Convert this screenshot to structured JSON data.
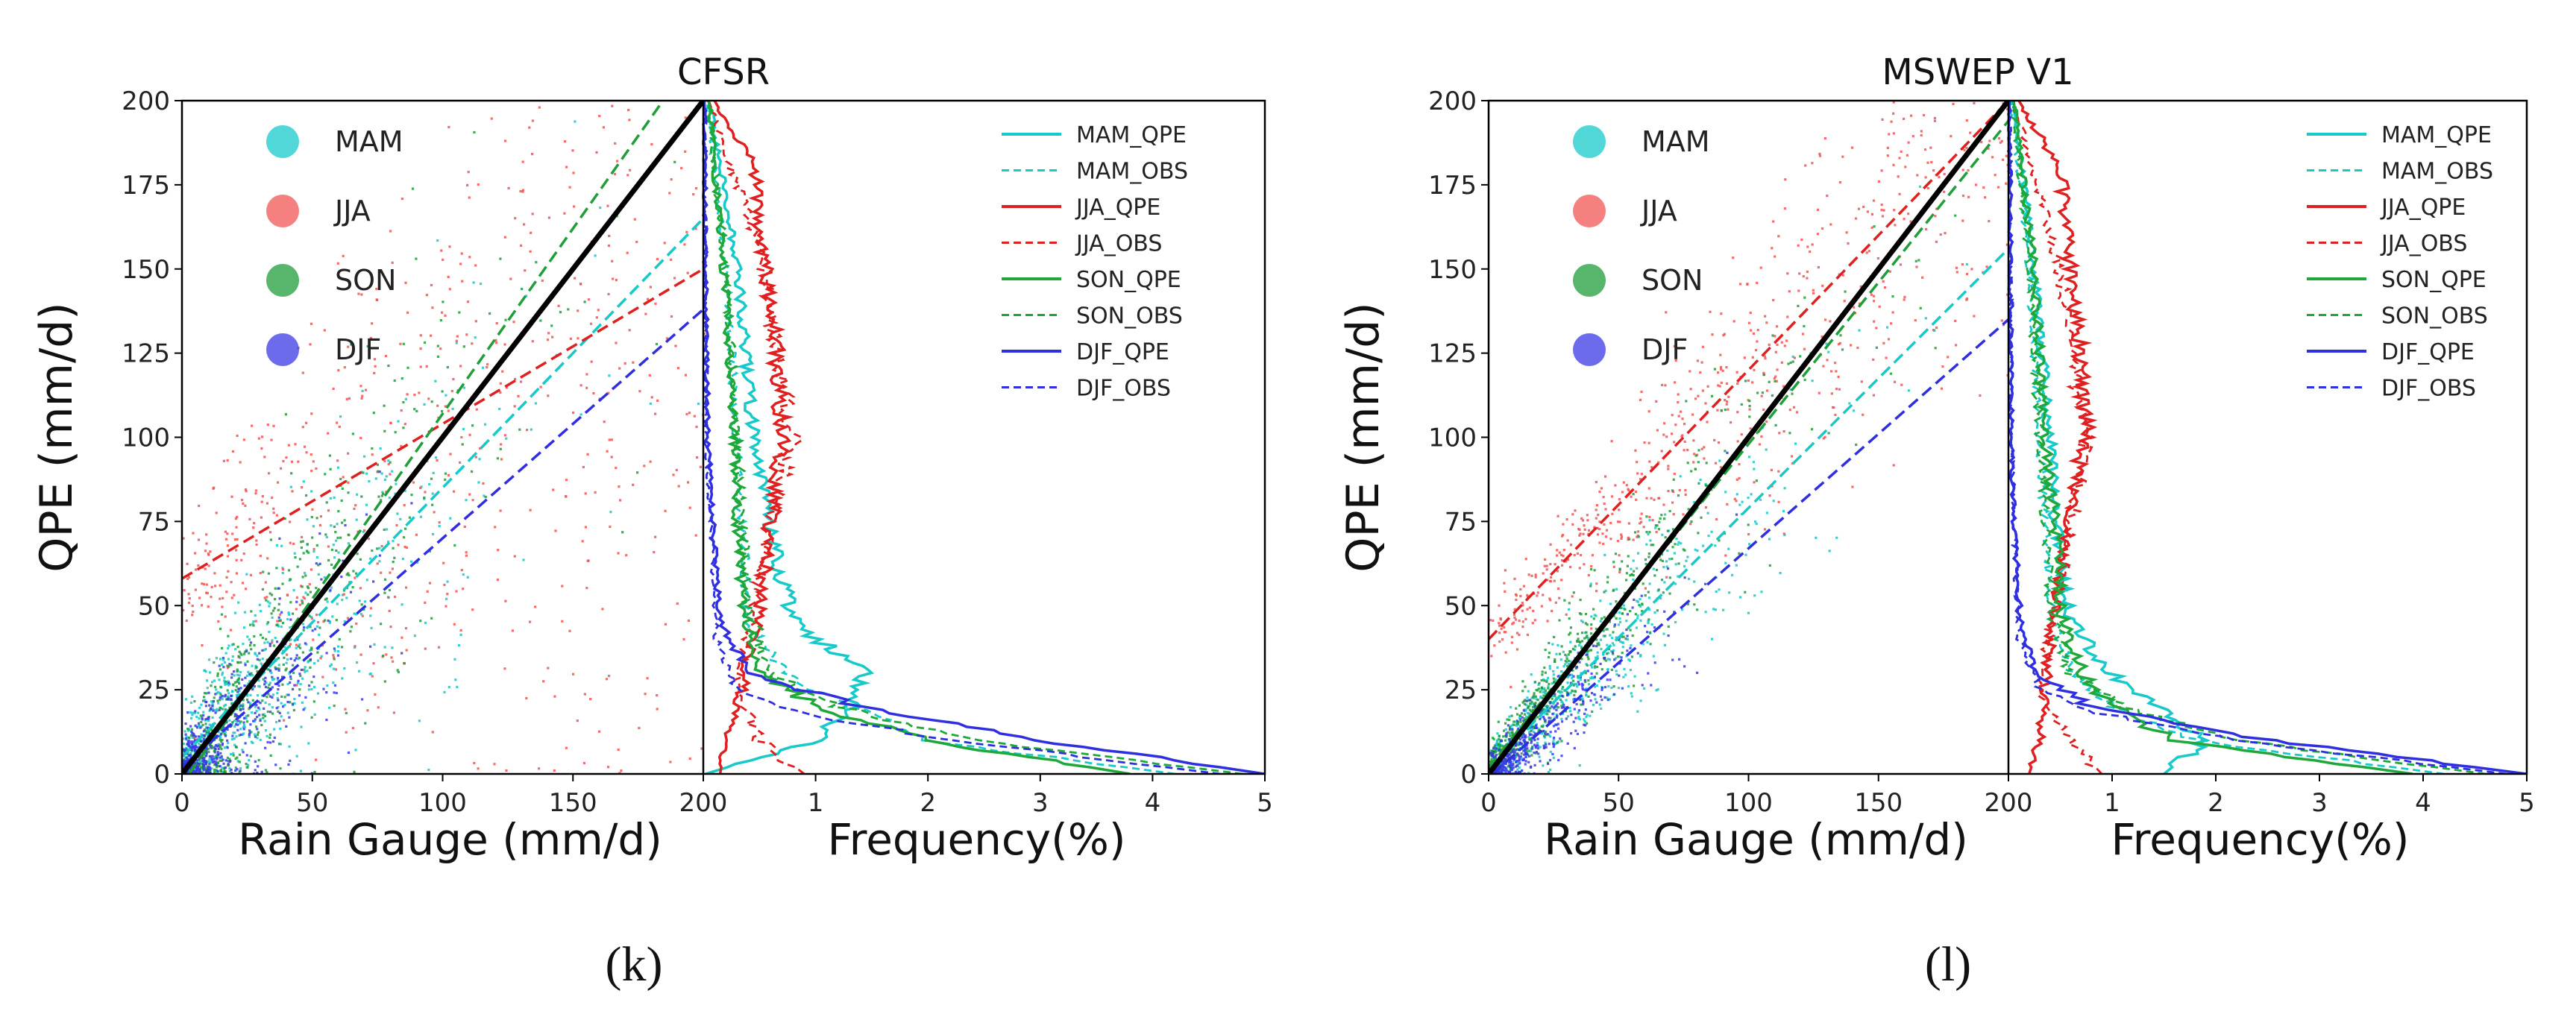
{
  "figure": {
    "panel_captions": [
      "(k)",
      "(l)"
    ]
  },
  "chart_data": [
    {
      "type": "scatter",
      "title": "CFSR",
      "xlabel": "Rain Gauge (mm/d)",
      "ylabel": "QPE (mm/d)",
      "xlim": [
        0,
        200
      ],
      "ylim": [
        0,
        200
      ],
      "xticks": [
        0,
        50,
        100,
        150,
        200
      ],
      "yticks": [
        0,
        25,
        50,
        75,
        100,
        125,
        150,
        175,
        200
      ],
      "freq_xlabel": "Frequency(%)",
      "freq_xlim": [
        0,
        5
      ],
      "freq_xticks": [
        1,
        2,
        3,
        4,
        5
      ],
      "scatter_legend": [
        "MAM",
        "JJA",
        "SON",
        "DJF"
      ],
      "line_legend": [
        "MAM_QPE",
        "MAM_OBS",
        "JJA_QPE",
        "JJA_OBS",
        "SON_QPE",
        "SON_OBS",
        "DJF_QPE",
        "DJF_OBS"
      ],
      "series": [
        {
          "name": "MAM",
          "color": "#17c9c9",
          "point_count": 650,
          "spread": 0.55,
          "fit": {
            "intercept": 5,
            "slope": 0.8
          }
        },
        {
          "name": "JJA",
          "color": "#f25555",
          "point_count": 650,
          "spread": 0.85,
          "fit": {
            "intercept": 58,
            "slope": 0.46
          }
        },
        {
          "name": "SON",
          "color": "#1f9e3a",
          "point_count": 600,
          "spread": 0.6,
          "fit": {
            "intercept": -3,
            "slope": 1.1
          }
        },
        {
          "name": "DJF",
          "color": "#3a3ae6",
          "point_count": 500,
          "spread": 0.45,
          "fit": {
            "intercept": 2,
            "slope": 0.68
          }
        }
      ],
      "identity_line": {
        "from": [
          0,
          0
        ],
        "to": [
          200,
          200
        ],
        "color": "#000000"
      },
      "frequency_curves": [
        {
          "name": "MAM_QPE",
          "color": "#17c9c9",
          "style": "solid",
          "profile": [
            [
              0,
              0.02
            ],
            [
              10,
              1.0
            ],
            [
              20,
              1.35
            ],
            [
              30,
              1.45
            ],
            [
              45,
              0.8
            ],
            [
              70,
              0.6
            ],
            [
              100,
              0.45
            ],
            [
              150,
              0.3
            ],
            [
              200,
              0.05
            ]
          ]
        },
        {
          "name": "MAM_OBS",
          "color": "#17c9c9",
          "style": "dashed",
          "profile": [
            [
              0,
              4.2
            ],
            [
              10,
              2.0
            ],
            [
              20,
              1.3
            ],
            [
              30,
              0.7
            ],
            [
              45,
              0.4
            ],
            [
              70,
              0.35
            ],
            [
              100,
              0.3
            ],
            [
              150,
              0.2
            ],
            [
              200,
              0.03
            ]
          ]
        },
        {
          "name": "JJA_QPE",
          "color": "#e02020",
          "style": "solid",
          "profile": [
            [
              0,
              0.15
            ],
            [
              10,
              0.2
            ],
            [
              25,
              0.35
            ],
            [
              50,
              0.5
            ],
            [
              75,
              0.6
            ],
            [
              100,
              0.7
            ],
            [
              125,
              0.65
            ],
            [
              150,
              0.55
            ],
            [
              180,
              0.45
            ],
            [
              200,
              0.1
            ]
          ]
        },
        {
          "name": "JJA_OBS",
          "color": "#e02020",
          "style": "dashed",
          "profile": [
            [
              0,
              0.9
            ],
            [
              10,
              0.5
            ],
            [
              25,
              0.3
            ],
            [
              50,
              0.45
            ],
            [
              75,
              0.6
            ],
            [
              100,
              0.8
            ],
            [
              125,
              0.65
            ],
            [
              150,
              0.55
            ],
            [
              200,
              0.05
            ]
          ]
        },
        {
          "name": "SON_QPE",
          "color": "#1fa83a",
          "style": "solid",
          "profile": [
            [
              0,
              3.8
            ],
            [
              10,
              2.0
            ],
            [
              20,
              1.0
            ],
            [
              30,
              0.5
            ],
            [
              50,
              0.35
            ],
            [
              75,
              0.3
            ],
            [
              100,
              0.28
            ],
            [
              150,
              0.18
            ],
            [
              200,
              0.05
            ]
          ]
        },
        {
          "name": "SON_OBS",
          "color": "#1fa83a",
          "style": "dashed",
          "profile": [
            [
              0,
              4.8
            ],
            [
              10,
              2.4
            ],
            [
              20,
              1.2
            ],
            [
              30,
              0.6
            ],
            [
              50,
              0.4
            ],
            [
              75,
              0.35
            ],
            [
              100,
              0.3
            ],
            [
              150,
              0.2
            ],
            [
              200,
              0.04
            ]
          ]
        },
        {
          "name": "DJF_QPE",
          "color": "#2f2fe0",
          "style": "solid",
          "profile": [
            [
              0,
              5.0
            ],
            [
              10,
              3.0
            ],
            [
              20,
              1.4
            ],
            [
              30,
              0.4
            ],
            [
              45,
              0.15
            ],
            [
              75,
              0.08
            ],
            [
              100,
              0.04
            ],
            [
              150,
              0.02
            ],
            [
              200,
              0.01
            ]
          ]
        },
        {
          "name": "DJF_OBS",
          "color": "#2f2fe0",
          "style": "dashed",
          "profile": [
            [
              0,
              4.6
            ],
            [
              10,
              2.2
            ],
            [
              18,
              0.9
            ],
            [
              25,
              0.3
            ],
            [
              40,
              0.12
            ],
            [
              75,
              0.06
            ],
            [
              100,
              0.03
            ],
            [
              150,
              0.02
            ],
            [
              200,
              0.01
            ]
          ]
        }
      ]
    },
    {
      "type": "scatter",
      "title": "MSWEP V1",
      "xlabel": "Rain Gauge (mm/d)",
      "ylabel": "QPE (mm/d)",
      "xlim": [
        0,
        200
      ],
      "ylim": [
        0,
        200
      ],
      "xticks": [
        0,
        50,
        100,
        150,
        200
      ],
      "yticks": [
        0,
        25,
        50,
        75,
        100,
        125,
        150,
        175,
        200
      ],
      "freq_xlabel": "Frequency(%)",
      "freq_xlim": [
        0,
        5
      ],
      "freq_xticks": [
        1,
        2,
        3,
        4,
        5
      ],
      "scatter_legend": [
        "MAM",
        "JJA",
        "SON",
        "DJF"
      ],
      "line_legend": [
        "MAM_QPE",
        "MAM_OBS",
        "JJA_QPE",
        "JJA_OBS",
        "SON_QPE",
        "SON_OBS",
        "DJF_QPE",
        "DJF_OBS"
      ],
      "series": [
        {
          "name": "MAM",
          "color": "#17c9c9",
          "point_count": 650,
          "spread": 0.3,
          "fit": {
            "intercept": 2,
            "slope": 0.77
          }
        },
        {
          "name": "JJA",
          "color": "#f25555",
          "point_count": 650,
          "spread": 0.35,
          "fit": {
            "intercept": 40,
            "slope": 0.8
          }
        },
        {
          "name": "SON",
          "color": "#1f9e3a",
          "point_count": 600,
          "spread": 0.3,
          "fit": {
            "intercept": 2,
            "slope": 0.96
          }
        },
        {
          "name": "DJF",
          "color": "#3a3ae6",
          "point_count": 500,
          "spread": 0.28,
          "fit": {
            "intercept": -1,
            "slope": 0.68
          }
        }
      ],
      "identity_line": {
        "from": [
          0,
          0
        ],
        "to": [
          200,
          200
        ],
        "color": "#000000"
      },
      "frequency_curves": [
        {
          "name": "MAM_QPE",
          "color": "#17c9c9",
          "style": "solid",
          "profile": [
            [
              0,
              1.5
            ],
            [
              10,
              1.9
            ],
            [
              20,
              1.4
            ],
            [
              30,
              1.0
            ],
            [
              45,
              0.6
            ],
            [
              75,
              0.45
            ],
            [
              100,
              0.4
            ],
            [
              150,
              0.25
            ],
            [
              200,
              0.05
            ]
          ]
        },
        {
          "name": "MAM_OBS",
          "color": "#17c9c9",
          "style": "dashed",
          "profile": [
            [
              0,
              4.2
            ],
            [
              10,
              1.8
            ],
            [
              20,
              1.0
            ],
            [
              30,
              0.6
            ],
            [
              50,
              0.4
            ],
            [
              75,
              0.35
            ],
            [
              100,
              0.3
            ],
            [
              150,
              0.2
            ],
            [
              200,
              0.03
            ]
          ]
        },
        {
          "name": "JJA_QPE",
          "color": "#e02020",
          "style": "solid",
          "profile": [
            [
              0,
              0.2
            ],
            [
              10,
              0.3
            ],
            [
              25,
              0.35
            ],
            [
              50,
              0.45
            ],
            [
              75,
              0.55
            ],
            [
              100,
              0.75
            ],
            [
              125,
              0.7
            ],
            [
              150,
              0.6
            ],
            [
              180,
              0.5
            ],
            [
              200,
              0.1
            ]
          ]
        },
        {
          "name": "JJA_OBS",
          "color": "#e02020",
          "style": "dashed",
          "profile": [
            [
              0,
              0.9
            ],
            [
              10,
              0.6
            ],
            [
              25,
              0.3
            ],
            [
              50,
              0.45
            ],
            [
              75,
              0.6
            ],
            [
              100,
              0.75
            ],
            [
              125,
              0.6
            ],
            [
              150,
              0.5
            ],
            [
              200,
              0.05
            ]
          ]
        },
        {
          "name": "SON_QPE",
          "color": "#1fa83a",
          "style": "solid",
          "profile": [
            [
              0,
              3.9
            ],
            [
              10,
              1.6
            ],
            [
              20,
              1.0
            ],
            [
              30,
              0.7
            ],
            [
              50,
              0.5
            ],
            [
              75,
              0.45
            ],
            [
              100,
              0.35
            ],
            [
              150,
              0.25
            ],
            [
              200,
              0.05
            ]
          ]
        },
        {
          "name": "SON_OBS",
          "color": "#1fa83a",
          "style": "dashed",
          "profile": [
            [
              0,
              4.6
            ],
            [
              10,
              2.2
            ],
            [
              20,
              1.1
            ],
            [
              30,
              0.6
            ],
            [
              50,
              0.4
            ],
            [
              75,
              0.35
            ],
            [
              100,
              0.3
            ],
            [
              150,
              0.2
            ],
            [
              200,
              0.04
            ]
          ]
        },
        {
          "name": "DJF_QPE",
          "color": "#2f2fe0",
          "style": "solid",
          "profile": [
            [
              0,
              5.0
            ],
            [
              10,
              2.5
            ],
            [
              20,
              0.8
            ],
            [
              30,
              0.25
            ],
            [
              45,
              0.12
            ],
            [
              75,
              0.05
            ],
            [
              100,
              0.03
            ],
            [
              150,
              0.02
            ],
            [
              200,
              0.01
            ]
          ]
        },
        {
          "name": "DJF_OBS",
          "color": "#2f2fe0",
          "style": "dashed",
          "profile": [
            [
              0,
              4.8
            ],
            [
              10,
              2.2
            ],
            [
              18,
              0.9
            ],
            [
              25,
              0.3
            ],
            [
              40,
              0.1
            ],
            [
              75,
              0.05
            ],
            [
              100,
              0.03
            ],
            [
              150,
              0.02
            ],
            [
              200,
              0.01
            ]
          ]
        }
      ]
    }
  ]
}
